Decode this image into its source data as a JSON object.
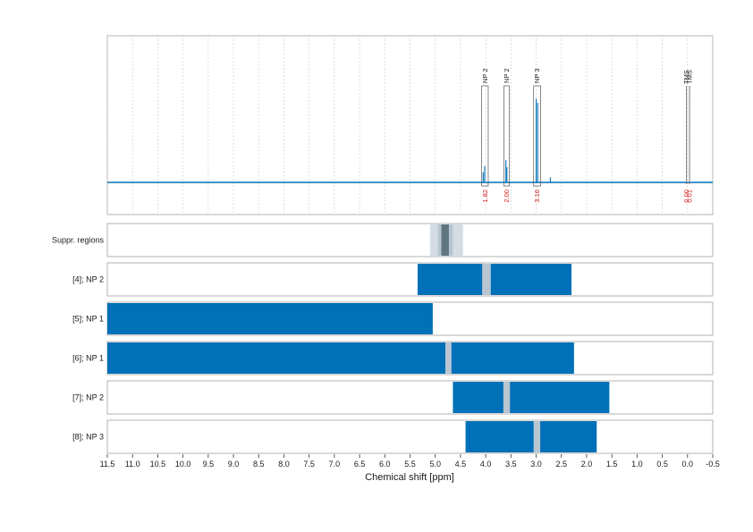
{
  "chart_data": {
    "type": "bar",
    "xlabel": "Chemical shift [ppm]",
    "xlim": [
      11.5,
      -0.5
    ],
    "xticks": [
      "11.5",
      "11.0",
      "10.5",
      "10.0",
      "9.5",
      "9.0",
      "8.5",
      "8.0",
      "7.5",
      "7.0",
      "6.5",
      "6.0",
      "5.5",
      "5.0",
      "4.5",
      "4.0",
      "3.5",
      "3.0",
      "2.5",
      "2.0",
      "1.5",
      "1.0",
      "0.5",
      "0.0",
      "-0.5"
    ],
    "colors": {
      "spectrum": "#0070b8",
      "bar": "#0070b8",
      "gap": "#b8c6d1",
      "integral": "#d62020",
      "suppr_light": "#d4dde4",
      "suppr_mid": "#b8c6d1",
      "suppr_dark": "#5f7580"
    },
    "spectrum": {
      "baseline_ppm_range": [
        11.5,
        -0.5
      ],
      "peaks": [
        {
          "ppm": 4.05,
          "rel_height": 0.1
        },
        {
          "ppm": 4.02,
          "rel_height": 0.16
        },
        {
          "ppm": 3.6,
          "rel_height": 0.22
        },
        {
          "ppm": 3.58,
          "rel_height": 0.15
        },
        {
          "ppm": 3.0,
          "rel_height": 0.82
        },
        {
          "ppm": 2.97,
          "rel_height": 0.78
        },
        {
          "ppm": 2.72,
          "rel_height": 0.05
        }
      ],
      "annotations": [
        {
          "label": "NP 2",
          "ppm_from": 4.08,
          "ppm_to": 3.95,
          "integral": "1.82"
        },
        {
          "label": "NP 2",
          "ppm_from": 3.64,
          "ppm_to": 3.53,
          "integral": "2.00"
        },
        {
          "label": "NP 3",
          "ppm_from": 3.05,
          "ppm_to": 2.91,
          "integral": "3.16"
        },
        {
          "label": "TMS",
          "ppm_from": 0.04,
          "ppm_to": 0.0,
          "integral": "0.00"
        },
        {
          "label": "TMS",
          "ppm_from": -0.02,
          "ppm_to": -0.06,
          "integral": "0.01"
        }
      ]
    },
    "suppression": {
      "label": "Suppr. regions",
      "bands": [
        {
          "from": 5.1,
          "to": 4.45,
          "shade": "suppr_light"
        },
        {
          "from": 4.95,
          "to": 4.65,
          "shade": "suppr_mid"
        },
        {
          "from": 4.88,
          "to": 4.73,
          "shade": "suppr_dark"
        }
      ]
    },
    "rows": [
      {
        "label": "[4]; NP 2",
        "bars": [
          [
            5.35,
            4.07
          ],
          [
            3.9,
            2.3
          ]
        ],
        "gaps": [
          [
            4.07,
            3.9
          ]
        ]
      },
      {
        "label": "[5]; NP 1",
        "bars": [
          [
            11.5,
            5.05
          ]
        ],
        "gaps": []
      },
      {
        "label": "[6]; NP 1",
        "bars": [
          [
            11.5,
            4.8
          ],
          [
            4.68,
            2.25
          ]
        ],
        "gaps": [
          [
            4.8,
            4.68
          ]
        ]
      },
      {
        "label": "[7]; NP 2",
        "bars": [
          [
            4.65,
            3.65
          ],
          [
            3.52,
            1.55
          ]
        ],
        "gaps": [
          [
            3.65,
            3.52
          ]
        ]
      },
      {
        "label": "[8]; NP 3",
        "bars": [
          [
            4.4,
            3.05
          ],
          [
            2.92,
            1.8
          ]
        ],
        "gaps": [
          [
            3.05,
            2.92
          ]
        ]
      }
    ]
  }
}
